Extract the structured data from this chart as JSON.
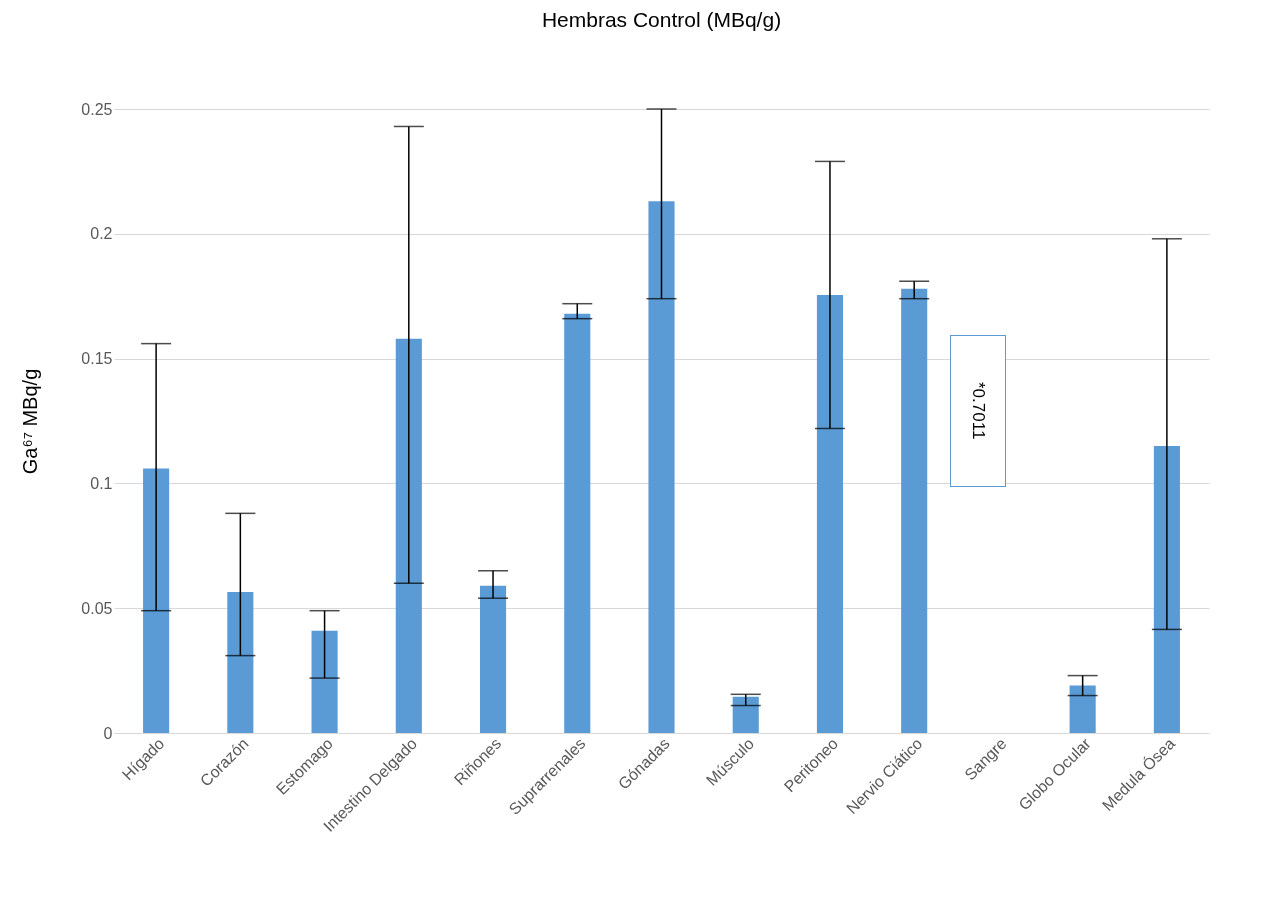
{
  "chart_data": {
    "type": "bar",
    "title": "Hembras Control (MBq/g)",
    "ylabel": "Ga⁶⁷ MBq/g",
    "categories": [
      "Hígado",
      "Corazón",
      "Estomago",
      "Intestino Delgado",
      "Riñones",
      "Suprarrenales",
      "Gónadas",
      "Músculo",
      "Peritoneo",
      "Nervio Ciático",
      "Sangre",
      "Globo Ocular",
      "Medula Ósea"
    ],
    "values": [
      0.106,
      0.0565,
      0.041,
      0.158,
      0.059,
      0.168,
      0.213,
      0.0145,
      0.1755,
      0.178,
      null,
      0.019,
      0.115
    ],
    "errors": [
      [
        0.049,
        0.156
      ],
      [
        0.031,
        0.088
      ],
      [
        0.022,
        0.049
      ],
      [
        0.06,
        0.243
      ],
      [
        0.054,
        0.065
      ],
      [
        0.166,
        0.172
      ],
      [
        0.174,
        0.25
      ],
      [
        0.011,
        0.0155
      ],
      [
        0.122,
        0.229
      ],
      [
        0.174,
        0.181
      ],
      null,
      [
        0.015,
        0.023
      ],
      [
        0.0415,
        0.198
      ]
    ],
    "color": "#5b9bd5",
    "ylim": [
      0,
      0.25
    ],
    "yticks": [
      0,
      0.05,
      {
        "value": 0.1,
        "label": "0.1"
      },
      0.15,
      {
        "value": 0.2,
        "label": "0.2"
      },
      0.25
    ],
    "grid": "y",
    "annotations": [
      "*0.7011"
    ]
  }
}
